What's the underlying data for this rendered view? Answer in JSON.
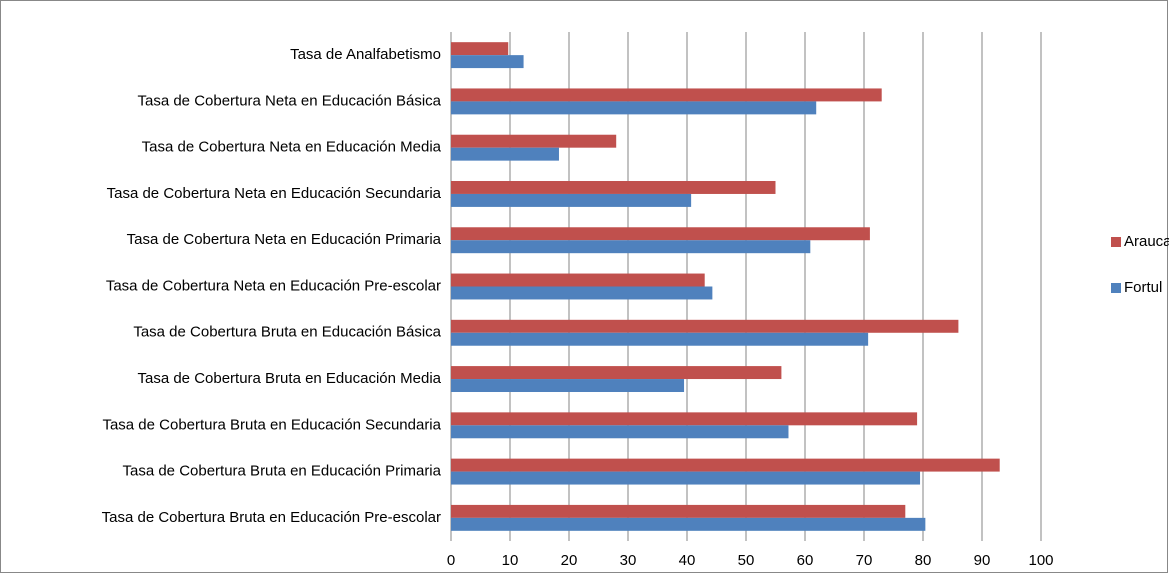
{
  "chart_data": {
    "type": "barh",
    "categories": [
      "Tasa de Analfabetismo",
      "Tasa de Cobertura Neta en Educación Básica",
      "Tasa de Cobertura Neta en Educación Media",
      "Tasa de Cobertura Neta en Educación Secundaria",
      "Tasa de Cobertura Neta en Educación Primaria",
      "Tasa de Cobertura Neta en Educación Pre-escolar",
      "Tasa de Cobertura Bruta en Educación Básica",
      "Tasa de Cobertura Bruta en Educación Media",
      "Tasa de Cobertura Bruta en Educación Secundaria",
      "Tasa de Cobertura Bruta en Educación Primaria",
      "Tasa de Cobertura Bruta en Educación Pre-escolar"
    ],
    "series": [
      {
        "name": "Arauca",
        "color": "#c0504d",
        "values": [
          9.7,
          73,
          28,
          55,
          71,
          43,
          86,
          56,
          79,
          93,
          77
        ]
      },
      {
        "name": "Fortul",
        "color": "#4f81bd",
        "values": [
          12.3,
          61.9,
          18.3,
          40.7,
          60.9,
          44.3,
          70.7,
          39.5,
          57.2,
          79.5,
          80.4
        ]
      }
    ],
    "xlim": [
      0,
      100
    ],
    "xticks": [
      0,
      10,
      20,
      30,
      40,
      50,
      60,
      70,
      80,
      90,
      100
    ],
    "grid": true,
    "legend": "right"
  }
}
